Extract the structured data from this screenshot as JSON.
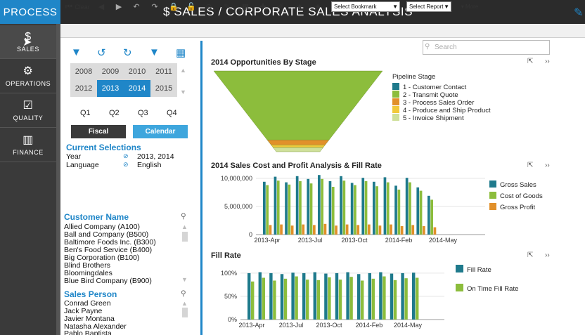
{
  "header": {
    "brand": "PROCESS",
    "title": "$  SALES / CORPORATE SALES ANALYSIS"
  },
  "nav": [
    {
      "label": "SALES",
      "icon": "dollar-icon"
    },
    {
      "label": "OPERATIONS",
      "icon": "gears-icon"
    },
    {
      "label": "QUALITY",
      "icon": "checkbox-icon"
    },
    {
      "label": "FINANCE",
      "icon": "bar-chart-icon"
    }
  ],
  "toolbar": {
    "clear_label": "Clear",
    "bookmark_placeholder": "Select Bookmark",
    "report_placeholder": "Select Report",
    "more_label": "More"
  },
  "filters": {
    "years": [
      "2008",
      "2009",
      "2010",
      "2011",
      "2012",
      "2013",
      "2014",
      "2015"
    ],
    "selected_years": [
      "2013",
      "2014"
    ],
    "quarters": [
      "Q1",
      "Q2",
      "Q3",
      "Q4"
    ],
    "fiscal_label": "Fiscal",
    "calendar_label": "Calendar"
  },
  "current_selections": {
    "title": "Current Selections",
    "rows": [
      {
        "field": "Year",
        "value": "2013, 2014"
      },
      {
        "field": "Language",
        "value": "English"
      }
    ]
  },
  "customer": {
    "title": "Customer Name",
    "items": [
      "Allied Company (A100)",
      "Ball and Company (B500)",
      "Baltimore Foods Inc. (B300)",
      "Ben's Food Service (B400)",
      "Big Corporation (B100)",
      "Blind Brothers",
      "Bloomingdales",
      "Blue Bird Company (B900)"
    ]
  },
  "salesperson": {
    "title": "Sales Person",
    "items": [
      "Conrad Green",
      "Jack Payne",
      "Javier Montana",
      "Natasha Alexander",
      "Pablo Baptista"
    ]
  },
  "search": {
    "placeholder": "Search"
  },
  "colors": {
    "accent": "#1f86c8",
    "teal": "#1f7a8c",
    "green": "#8cbd3c",
    "orange": "#e1902a",
    "yellow": "#f1c93b",
    "pale": "#cfe09a"
  },
  "funnel": {
    "title": "2014 Opportunities By Stage",
    "legend_title": "Pipeline Stage",
    "chart_data": {
      "type": "funnel",
      "title": "2014 Opportunities By Stage",
      "legend_title": "Pipeline Stage",
      "categories": [
        "1 - Customer Contact",
        "2 - Transmit Quote",
        "3 - Process Sales Order",
        "4 - Produce and Ship Product",
        "5 - Invoice Shipment"
      ],
      "values": [
        0,
        82,
        6,
        3,
        5
      ],
      "colors": [
        "#1f7a8c",
        "#8cbd3c",
        "#e1902a",
        "#f1c93b",
        "#cfe09a"
      ]
    }
  },
  "sales": {
    "title": "2014 Sales Cost and Profit Analysis & Fill Rate",
    "chart_data": {
      "type": "bar",
      "title": "2014 Sales Cost and Profit Analysis & Fill Rate",
      "x_labels": [
        "2013-Apr",
        "2013-Jul",
        "2013-Oct",
        "2014-Feb",
        "2014-May"
      ],
      "yticks": [
        "10,000,000",
        "5,000,000",
        "0"
      ],
      "ylim": [
        0,
        12000000
      ],
      "series": [
        {
          "name": "Gross Sales",
          "color": "#1f7a8c",
          "values": [
            9400000,
            10300000,
            9300000,
            10400000,
            9900000,
            10600000,
            9500000,
            10400000,
            9200000,
            10100000,
            9400000,
            10200000,
            8700000,
            10100000,
            8400000,
            6900000
          ]
        },
        {
          "name": "Cost of Goods",
          "color": "#8cbd3c",
          "values": [
            8800000,
            9600000,
            8900000,
            9500000,
            9100000,
            9900000,
            8500000,
            9600000,
            8800000,
            9500000,
            8600000,
            9300000,
            8000000,
            9300000,
            7800000,
            6200000
          ]
        },
        {
          "name": "Gross Profit",
          "color": "#e1902a",
          "values": [
            1700000,
            1800000,
            1600000,
            1800000,
            1700000,
            1900000,
            1600000,
            1800000,
            1700000,
            1800000,
            1600000,
            1800000,
            1500000,
            1700000,
            1500000,
            1300000
          ]
        }
      ]
    }
  },
  "fill": {
    "title": "Fill Rate",
    "chart_data": {
      "type": "bar",
      "title": "Fill Rate",
      "x_labels": [
        "2013-Apr",
        "2013-Jul",
        "2013-Oct",
        "2014-Feb",
        "2014-May"
      ],
      "yticks": [
        "100%",
        "50%",
        "0%"
      ],
      "ylim": [
        0,
        1.15
      ],
      "series": [
        {
          "name": "Fill Rate",
          "color": "#1f7a8c",
          "values": [
            1.0,
            1.02,
            1.0,
            0.98,
            1.01,
            1.0,
            1.02,
            0.99,
            1.0,
            1.02,
            0.98,
            1.0,
            1.02,
            0.99,
            1.0,
            1.01
          ]
        },
        {
          "name": "On Time Fill Rate",
          "color": "#8cbd3c",
          "values": [
            0.82,
            0.9,
            0.84,
            0.88,
            0.93,
            0.86,
            0.85,
            0.91,
            0.86,
            0.92,
            0.84,
            0.88,
            0.93,
            0.85,
            0.89,
            0.9
          ]
        }
      ]
    }
  }
}
